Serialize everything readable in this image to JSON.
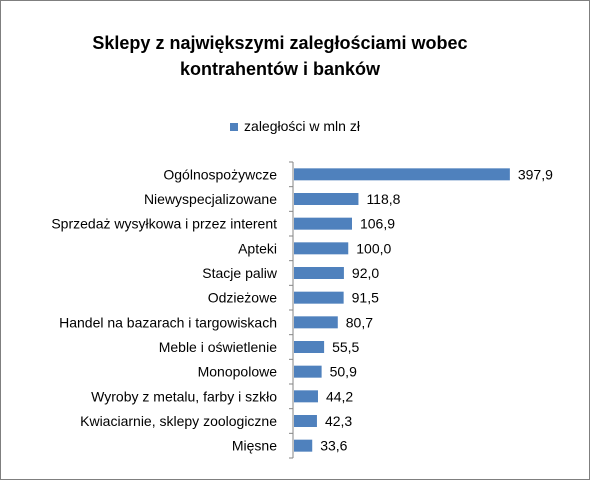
{
  "chart_data": {
    "type": "bar",
    "orientation": "horizontal",
    "title": "Sklepy z największymi zaległościami wobec kontrahentów i banków",
    "title_lines": [
      "Sklepy z największymi zaległościami wobec",
      "kontrahentów i banków"
    ],
    "legend_position": "top",
    "grid": false,
    "series": [
      {
        "name": "zaległości w mln zł",
        "color": "#4f81bd",
        "values": [
          397.9,
          118.8,
          106.9,
          100.0,
          92.0,
          91.5,
          80.7,
          55.5,
          50.9,
          44.2,
          42.3,
          33.6
        ],
        "value_labels": [
          "397,9",
          "118,8",
          "106,9",
          "100,0",
          "92,0",
          "91,5",
          "80,7",
          "55,5",
          "50,9",
          "44,2",
          "42,3",
          "33,6"
        ]
      }
    ],
    "categories": [
      "Ogólnospożywcze",
      "Niewyspecjalizowane",
      "Sprzedaż wysyłkowa i przez interent",
      "Apteki",
      "Stacje paliw",
      "Odzieżowe",
      "Handel na bazarach i targowiskach",
      "Meble i oświetlenie",
      "Monopolowe",
      "Wyroby z metalu, farby i szkło",
      "Kwiaciarnie, sklepy zoologiczne",
      "Mięsne"
    ],
    "xlabel": "",
    "ylabel": "",
    "xlim": [
      0,
      400
    ]
  }
}
